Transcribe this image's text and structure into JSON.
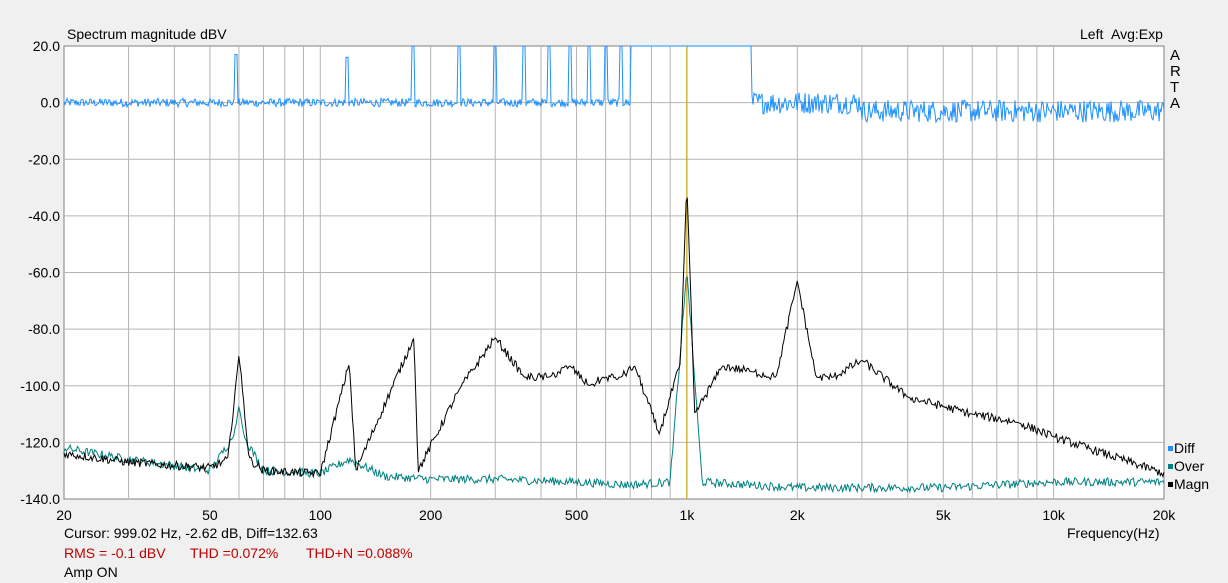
{
  "header": {
    "title": "Spectrum magnitude dBV",
    "channel": "Left",
    "averaging": "Avg:Exp",
    "brand_letters": [
      "A",
      "R",
      "T",
      "A"
    ]
  },
  "status": {
    "cursor": "Cursor: 999.02 Hz, -2.62 dB,  Diff=132.63",
    "rms": "RMS =   -0.1 dBV",
    "thd": "THD =0.072%",
    "thdn": "THD+N =0.088%",
    "amp": "Amp ON"
  },
  "legend": [
    {
      "label": "Diff",
      "color": "#1e90ff"
    },
    {
      "label": "Over",
      "color": "#008080"
    },
    {
      "label": "Magn",
      "color": "#000000"
    }
  ],
  "chart_data": {
    "type": "line",
    "title": "Spectrum magnitude dBV",
    "xlabel": "Frequency(Hz)",
    "ylabel": "",
    "x_scale": "log",
    "xlim": [
      20,
      20000
    ],
    "ylim": [
      -140,
      20
    ],
    "grid": true,
    "legend_position": "right-bottom",
    "x_major_ticks": [
      {
        "value": 20,
        "label": "20"
      },
      {
        "value": 50,
        "label": "50"
      },
      {
        "value": 100,
        "label": "100"
      },
      {
        "value": 200,
        "label": "200"
      },
      {
        "value": 500,
        "label": "500"
      },
      {
        "value": 1000,
        "label": "1k"
      },
      {
        "value": 2000,
        "label": "2k"
      },
      {
        "value": 5000,
        "label": "5k"
      },
      {
        "value": 10000,
        "label": "10k"
      },
      {
        "value": 20000,
        "label": "20k"
      }
    ],
    "y_ticks": [
      {
        "value": 20,
        "label": "20.0"
      },
      {
        "value": 0,
        "label": "0.0"
      },
      {
        "value": -20,
        "label": "-20.0"
      },
      {
        "value": -40,
        "label": "-40.0"
      },
      {
        "value": -60,
        "label": "-60.0"
      },
      {
        "value": -80,
        "label": "-80.0"
      },
      {
        "value": -100,
        "label": "-100.0"
      },
      {
        "value": -120,
        "label": "-120.0"
      },
      {
        "value": -140,
        "label": "-140.0"
      }
    ],
    "cursor": {
      "x": 999.02,
      "color": "#c8a000"
    },
    "series": [
      {
        "name": "Diff",
        "color": "#1e90ff",
        "baseline_db": 0,
        "spikes": [
          [
            59,
            17
          ],
          [
            118,
            16
          ],
          [
            179,
            20
          ],
          [
            239,
            20
          ],
          [
            300,
            20
          ],
          [
            360,
            20
          ],
          [
            420,
            20
          ],
          [
            479,
            20
          ],
          [
            540,
            20
          ],
          [
            600,
            20
          ],
          [
            660,
            20
          ],
          [
            720,
            20
          ],
          [
            900,
            20
          ],
          [
            1100,
            20
          ],
          [
            1200,
            20
          ]
        ]
      },
      {
        "name": "Over",
        "color": "#008080",
        "points": [
          [
            20,
            -122
          ],
          [
            30,
            -126
          ],
          [
            50,
            -130
          ],
          [
            58,
            -118
          ],
          [
            60,
            -107
          ],
          [
            62,
            -118
          ],
          [
            70,
            -130
          ],
          [
            100,
            -131
          ],
          [
            120,
            -126
          ],
          [
            150,
            -132
          ],
          [
            200,
            -133
          ],
          [
            300,
            -133
          ],
          [
            500,
            -134
          ],
          [
            700,
            -135
          ],
          [
            900,
            -134
          ],
          [
            999,
            -59
          ],
          [
            1100,
            -134
          ],
          [
            2000,
            -136
          ],
          [
            5000,
            -136
          ],
          [
            10000,
            -134
          ],
          [
            20000,
            -134
          ]
        ]
      },
      {
        "name": "Magn",
        "color": "#000000",
        "points": [
          [
            20,
            -124
          ],
          [
            30,
            -127
          ],
          [
            50,
            -129
          ],
          [
            56,
            -126
          ],
          [
            60,
            -89
          ],
          [
            64,
            -126
          ],
          [
            70,
            -130
          ],
          [
            100,
            -131
          ],
          [
            120,
            -92
          ],
          [
            125,
            -130
          ],
          [
            180,
            -83
          ],
          [
            185,
            -130
          ],
          [
            240,
            -101
          ],
          [
            300,
            -83
          ],
          [
            360,
            -97
          ],
          [
            420,
            -97
          ],
          [
            480,
            -93
          ],
          [
            540,
            -100
          ],
          [
            600,
            -97
          ],
          [
            660,
            -97
          ],
          [
            720,
            -93
          ],
          [
            840,
            -117
          ],
          [
            960,
            -92
          ],
          [
            999,
            -28
          ],
          [
            1050,
            -110
          ],
          [
            1250,
            -93
          ],
          [
            1500,
            -95
          ],
          [
            1750,
            -97
          ],
          [
            2000,
            -63
          ],
          [
            2250,
            -97
          ],
          [
            2500,
            -97
          ],
          [
            3000,
            -91
          ],
          [
            4000,
            -104
          ],
          [
            6000,
            -110
          ],
          [
            8000,
            -113
          ],
          [
            10000,
            -118
          ],
          [
            20000,
            -131
          ]
        ]
      }
    ]
  }
}
